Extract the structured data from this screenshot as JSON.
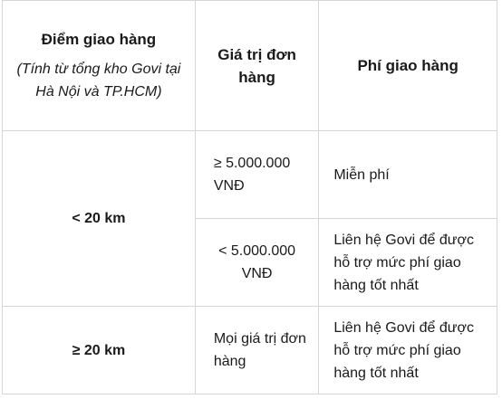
{
  "table": {
    "headers": {
      "location_title": "Điểm giao hàng",
      "location_note": "(Tính từ tổng kho Govi tại Hà Nội và TP.HCM)",
      "order_value": "Giá trị đơn hàng",
      "shipping_fee": "Phí giao hàng"
    },
    "rows": [
      {
        "distance": "< 20 km",
        "tiers": [
          {
            "order_value": "≥ 5.000.000 VNĐ",
            "fee": "Miễn phí"
          },
          {
            "order_value": "< 5.000.000 VNĐ",
            "fee": "Liên hệ Govi để được hỗ trợ mức phí giao hàng tốt nhất"
          }
        ]
      },
      {
        "distance": "≥ 20 km",
        "tiers": [
          {
            "order_value": "Mọi giá trị đơn hàng",
            "fee": "Liên hệ Govi để được hỗ trợ mức phí giao hàng tốt nhất"
          }
        ]
      }
    ]
  }
}
